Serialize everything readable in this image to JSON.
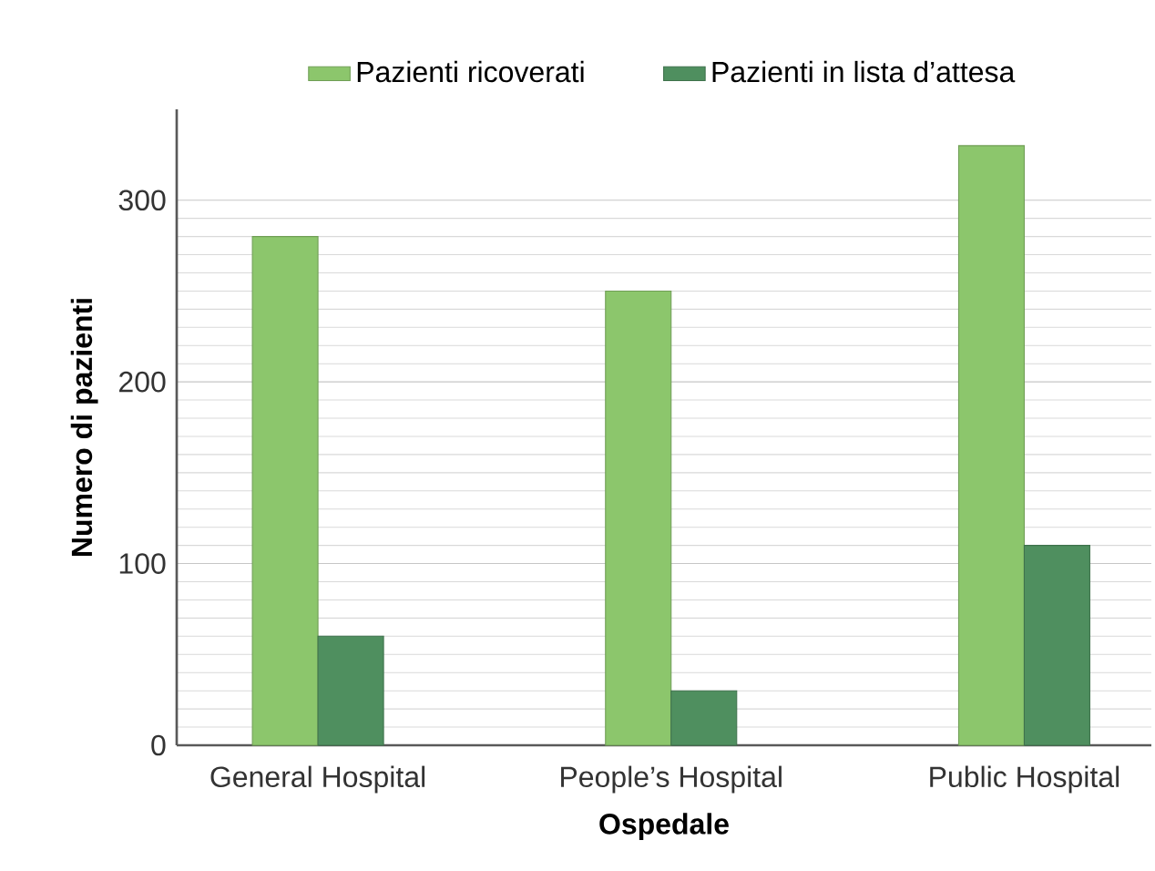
{
  "chart_data": {
    "type": "bar",
    "xlabel": "Ospedale",
    "ylabel": "Numero di pazienti",
    "categories": [
      "General Hospital",
      "People’s Hospital",
      "Public Hospital"
    ],
    "series": [
      {
        "name": "Pazienti ricoverati",
        "color": "#8cc66c",
        "values": [
          280,
          250,
          330
        ]
      },
      {
        "name": "Pazienti in lista d’attesa",
        "color": "#4f8f5f",
        "values": [
          60,
          30,
          110
        ]
      }
    ],
    "ylim": [
      0,
      350
    ],
    "yticks": [
      0,
      100,
      200,
      300
    ],
    "grid": "y",
    "legend": "top"
  }
}
